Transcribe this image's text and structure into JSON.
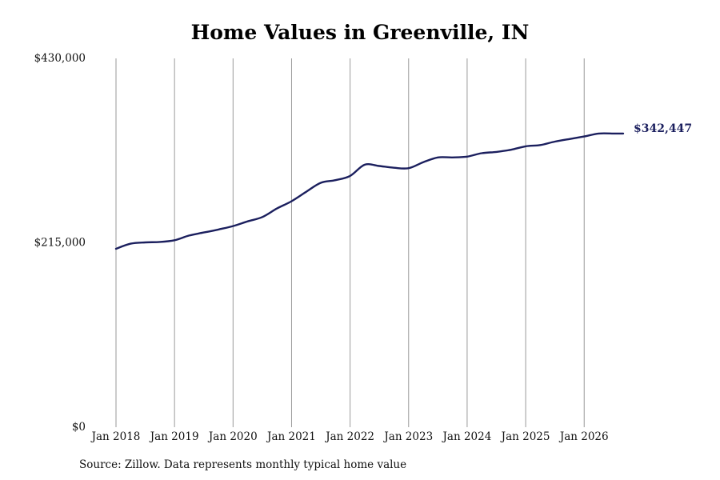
{
  "title": "Home Values in Greenville, IN",
  "source": "Source: Zillow. Data represents monthly typical home value",
  "chart_data": {
    "type": "line",
    "title": "Home Values in Greenville, IN",
    "xlabel": "",
    "ylabel": "",
    "ylim": [
      0,
      430000
    ],
    "yticks": [
      0,
      215000,
      430000
    ],
    "ytick_labels": [
      "$0",
      "$215,000",
      "$430,000"
    ],
    "xlim": [
      "2018-01",
      "2026-09"
    ],
    "xtick_labels": [
      "Jan 2018",
      "Jan 2019",
      "Jan 2020",
      "Jan 2021",
      "Jan 2022",
      "Jan 2023",
      "Jan 2024",
      "Jan 2025",
      "Jan 2026"
    ],
    "grid": "vertical",
    "legend": "none",
    "line_color": "#1b1f5e",
    "end_label": "$342,447",
    "series": [
      {
        "x": [
          "2018-01",
          "2018-04",
          "2018-07",
          "2018-10",
          "2019-01",
          "2019-04",
          "2019-07",
          "2019-10",
          "2020-01",
          "2020-04",
          "2020-07",
          "2020-10",
          "2021-01",
          "2021-04",
          "2021-07",
          "2021-10",
          "2022-01",
          "2022-04",
          "2022-07",
          "2022-10",
          "2023-01",
          "2023-04",
          "2023-07",
          "2023-10",
          "2024-01",
          "2024-04",
          "2024-07",
          "2024-10",
          "2025-01",
          "2025-04",
          "2025-07",
          "2025-10",
          "2026-01",
          "2026-04",
          "2026-07",
          "2026-09"
        ],
        "values": [
          208000,
          214000,
          215500,
          216000,
          218000,
          223500,
          227000,
          230500,
          234500,
          240000,
          245000,
          255000,
          263500,
          274500,
          285000,
          288000,
          293000,
          306000,
          304500,
          302500,
          302000,
          309000,
          314500,
          314500,
          315500,
          319500,
          321000,
          323500,
          327500,
          329000,
          333000,
          336000,
          339000,
          342400,
          342400,
          342447
        ]
      }
    ]
  }
}
